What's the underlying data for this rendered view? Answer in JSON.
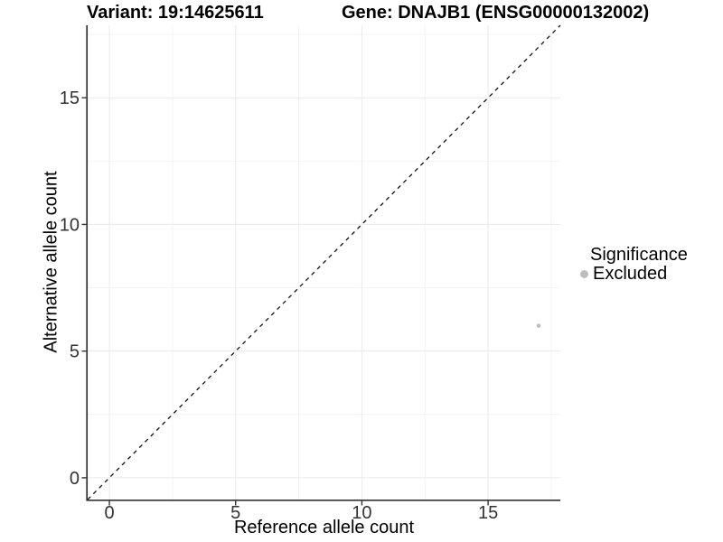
{
  "header": {
    "variant_title": "Variant: 19:14625611",
    "gene_title": "Gene: DNAJB1 (ENSG00000132002)"
  },
  "legend": {
    "title": "Significance",
    "items": [
      {
        "label": "Excluded",
        "color": "#bebebe"
      }
    ]
  },
  "chart_data": {
    "type": "scatter",
    "title": "Variant: 19:14625611 — Gene: DNAJB1 (ENSG00000132002)",
    "xlabel": "Reference allele count",
    "ylabel": "Alternative allele count",
    "xlim": [
      -0.86,
      17.86
    ],
    "ylim": [
      -0.86,
      17.86
    ],
    "x_ticks": [
      0,
      5,
      10,
      15
    ],
    "y_ticks": [
      0,
      5,
      10,
      15
    ],
    "x_minor_ticks": [
      2.5,
      7.5,
      12.5,
      17.5
    ],
    "y_minor_ticks": [
      2.5,
      7.5,
      12.5,
      17.5
    ],
    "grid": "major and minor, very light gray",
    "legend_position": "right",
    "series": [
      {
        "name": "Excluded",
        "color": "#bebebe",
        "point_radius": 2.3,
        "points": [
          {
            "x": 17,
            "y": 6
          }
        ]
      }
    ],
    "reference_line": {
      "kind": "identity y=x",
      "slope": 1,
      "intercept": 0,
      "style": "dashed",
      "color": "#111111"
    }
  },
  "style": {
    "point_color": "#bebebe",
    "grid_major_color": "#eaeaea",
    "grid_minor_color": "#f4f4f4",
    "axis_color": "#333333",
    "tick_label_color": "#333333"
  }
}
